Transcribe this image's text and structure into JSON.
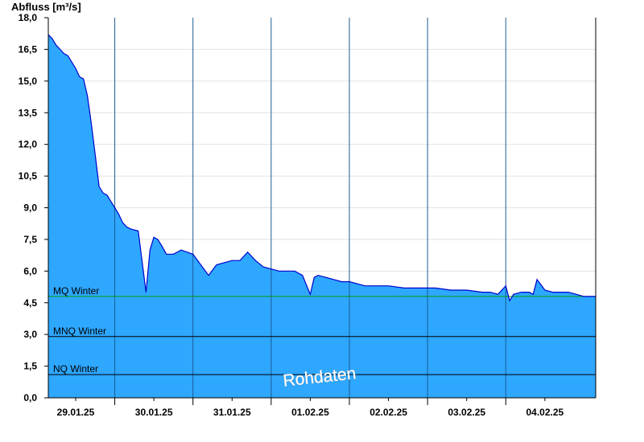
{
  "chart_data": {
    "type": "area",
    "title": "",
    "ylabel": "Abfluss [m³/s]",
    "xlabel": "",
    "ylim": [
      0,
      18
    ],
    "y_ticks": [
      "0,0",
      "1,5",
      "3,0",
      "4,5",
      "6,0",
      "7,5",
      "9,0",
      "10,5",
      "12,0",
      "13,5",
      "15,0",
      "16,5",
      "18,0"
    ],
    "x_ticks": [
      "29.01.25",
      "30.01.25",
      "31.01.25",
      "01.02.25",
      "02.02.25",
      "03.02.25",
      "04.02.25"
    ],
    "grid": true,
    "x_unit": "day offset from first tick",
    "x_range": [
      -0.35,
      6.65
    ],
    "series": [
      {
        "color": "#2ea7ff",
        "line_color": "#0000cc",
        "x": [
          -0.35,
          -0.3,
          -0.25,
          -0.2,
          -0.15,
          -0.1,
          0.0,
          0.05,
          0.1,
          0.15,
          0.2,
          0.25,
          0.3,
          0.35,
          0.4,
          0.45,
          0.5,
          0.55,
          0.6,
          0.65,
          0.7,
          0.8,
          0.9,
          0.95,
          1.0,
          1.05,
          1.1,
          1.13,
          1.16,
          1.2,
          1.25,
          1.35,
          1.5,
          1.6,
          1.7,
          1.8,
          1.9,
          2.0,
          2.1,
          2.2,
          2.3,
          2.4,
          2.5,
          2.6,
          2.7,
          2.8,
          2.9,
          3.0,
          3.05,
          3.1,
          3.2,
          3.3,
          3.4,
          3.5,
          3.6,
          3.7,
          3.8,
          3.9,
          4.0,
          4.2,
          4.4,
          4.6,
          4.8,
          5.0,
          5.2,
          5.3,
          5.4,
          5.5,
          5.55,
          5.6,
          5.7,
          5.8,
          5.85,
          5.9,
          6.0,
          6.1,
          6.2,
          6.3,
          6.4,
          6.5,
          6.65
        ],
        "values": [
          17.2,
          17.0,
          16.7,
          16.5,
          16.3,
          16.2,
          15.6,
          15.2,
          15.1,
          14.3,
          13.0,
          11.5,
          10.0,
          9.7,
          9.6,
          9.3,
          9.0,
          8.7,
          8.3,
          8.1,
          8.0,
          7.9,
          5.0,
          7.0,
          7.6,
          7.5,
          7.2,
          7.0,
          6.8,
          6.8,
          6.8,
          7.0,
          6.8,
          6.3,
          5.8,
          6.3,
          6.4,
          6.5,
          6.5,
          6.9,
          6.5,
          6.2,
          6.1,
          6.0,
          6.0,
          6.0,
          5.8,
          4.9,
          5.7,
          5.8,
          5.7,
          5.6,
          5.5,
          5.5,
          5.4,
          5.3,
          5.3,
          5.3,
          5.3,
          5.2,
          5.2,
          5.2,
          5.1,
          5.1,
          5.0,
          5.0,
          4.9,
          5.3,
          4.6,
          4.9,
          5.0,
          5.0,
          4.9,
          5.6,
          5.1,
          5.0,
          5.0,
          5.0,
          4.9,
          4.8,
          4.8
        ]
      }
    ],
    "reference_lines": [
      {
        "label": "MQ Winter",
        "value": 4.8,
        "color": "#00a000"
      },
      {
        "label": "MNQ Winter",
        "value": 2.9,
        "color": "#000000"
      },
      {
        "label": "NQ Winter",
        "value": 1.1,
        "color": "#000000"
      }
    ],
    "watermark": "Rohdaten"
  }
}
